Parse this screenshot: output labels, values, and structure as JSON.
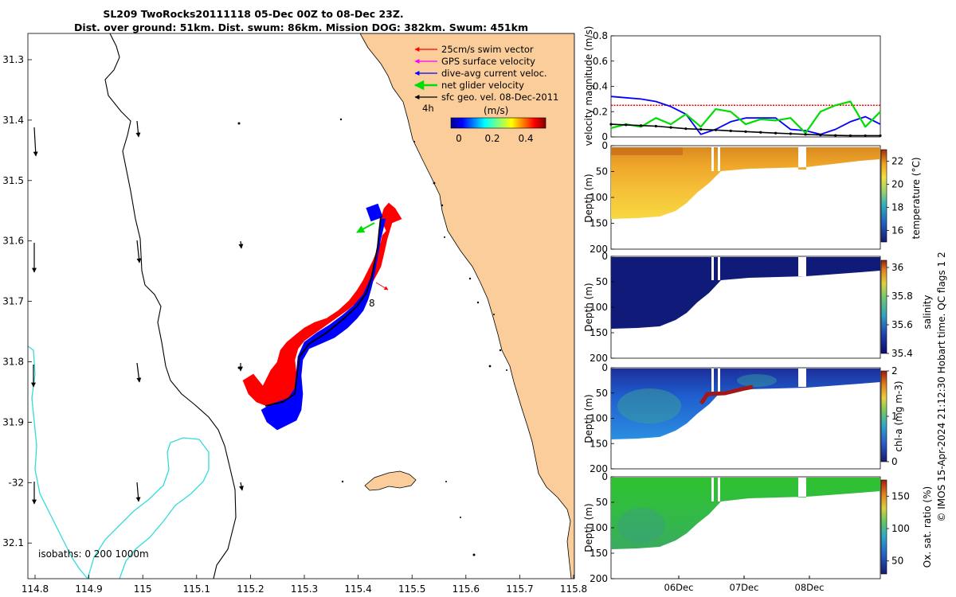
{
  "title": {
    "line1": "SL209 TwoRocks20111118 05-Dec 00Z to 08-Dec 23Z.",
    "line2": "Dist. over ground: 51km. Dist. swum: 86km. Mission DOG: 382km. Swum: 451km"
  },
  "colors": {
    "land": "#fbcd9b",
    "isobath_0": "#000000",
    "isobath_200": "#000000",
    "isobath_1000": "#33dcdc",
    "swim_vector": "#ff0000",
    "gps_surface": "#ff00ff",
    "dive_avg": "#0000ff",
    "net_glider": "#00dd00",
    "sfc_geo": "#000000"
  },
  "map": {
    "legend": [
      {
        "label": "25cm/s swim vector",
        "color": "#ff0000"
      },
      {
        "label": "GPS surface velocity",
        "color": "#ff00ff"
      },
      {
        "label": "dive-avg current veloc.",
        "color": "#0000ff"
      },
      {
        "label": "net glider velocity",
        "color": "#00dd00"
      },
      {
        "label": "sfc geo. vel. 08-Dec-2011",
        "color": "#000000"
      }
    ],
    "time_label": "4h",
    "colorbar_label": "(m/s)",
    "colorbar_ticks": [
      "0",
      "0.2",
      "0.4"
    ],
    "isobath_label": "isobaths: 0   200  1000m",
    "track_annotation": "8",
    "lon_ticks": [
      "114.8",
      "114.9",
      "115",
      "115.1",
      "115.2",
      "115.3",
      "115.4",
      "115.5",
      "115.6",
      "115.7",
      "115.8"
    ],
    "lat_ticks": [
      "31.3",
      "31.4",
      "31.5",
      "31.6",
      "31.7",
      "31.8",
      "31.9",
      "-32",
      "32.1"
    ]
  },
  "chart_data": [
    {
      "type": "line",
      "ylabel": "velocity magnitude (m/s)",
      "ylim": [
        0,
        0.8
      ],
      "yticks": [
        "0",
        "0.2",
        "0.4",
        "0.6",
        "0.8"
      ],
      "series": [
        {
          "color": "#ff0000",
          "values": [
            0.25,
            0.25,
            0.25,
            0.25,
            0.25,
            0.25,
            0.25,
            0.25,
            0.25,
            0.25
          ]
        },
        {
          "color": "#0000ff",
          "values": [
            0.32,
            0.31,
            0.3,
            0.28,
            0.24,
            0.18,
            0.02,
            0.06,
            0.12,
            0.15,
            0.15,
            0.15,
            0.06,
            0.05,
            0.02,
            0.06,
            0.12,
            0.16,
            0.1
          ]
        },
        {
          "color": "#00dd00",
          "values": [
            0.07,
            0.1,
            0.08,
            0.15,
            0.1,
            0.18,
            0.08,
            0.22,
            0.2,
            0.1,
            0.14,
            0.13,
            0.15,
            0.03,
            0.2,
            0.25,
            0.28,
            0.08,
            0.2
          ]
        },
        {
          "color": "#000000",
          "values": [
            0.1,
            0.095,
            0.09,
            0.085,
            0.075,
            0.065,
            0.06,
            0.055,
            0.048,
            0.042,
            0.036,
            0.03,
            0.025,
            0.02,
            0.015,
            0.012,
            0.01,
            0.01,
            0.01
          ]
        }
      ]
    },
    {
      "type": "heatmap",
      "ylabel": "Depth (m)",
      "colorbar_label": "temperature (°C)",
      "yticks": [
        "0",
        "50",
        "100",
        "150",
        "200"
      ],
      "colorbar_ticks": [
        "16",
        "18",
        "20",
        "22"
      ],
      "ylim": [
        200,
        0
      ],
      "clim": [
        15,
        23
      ]
    },
    {
      "type": "heatmap",
      "ylabel": "Depth (m)",
      "colorbar_label": "salinity",
      "yticks": [
        "0",
        "50",
        "100",
        "150",
        "200"
      ],
      "colorbar_ticks": [
        "35.4",
        "35.6",
        "35.8",
        "36"
      ],
      "ylim": [
        200,
        0
      ],
      "clim": [
        35.4,
        36.05
      ]
    },
    {
      "type": "heatmap",
      "ylabel": "Depth (m)",
      "colorbar_label": "chl-a (mg m-3)",
      "yticks": [
        "0",
        "50",
        "100",
        "150",
        "200"
      ],
      "colorbar_ticks": [
        "0",
        "1",
        "2"
      ],
      "ylim": [
        200,
        0
      ],
      "clim": [
        0,
        2
      ]
    },
    {
      "type": "heatmap",
      "ylabel": "Depth (m)",
      "colorbar_label": "Ox. sat. ratio (%)",
      "yticks": [
        "0",
        "50",
        "100",
        "150",
        "200"
      ],
      "colorbar_ticks": [
        "50",
        "100",
        "150"
      ],
      "ylim": [
        200,
        0
      ],
      "clim": [
        30,
        175
      ]
    }
  ],
  "time_axis": {
    "ticks": [
      "06Dec",
      "07Dec",
      "08Dec"
    ]
  },
  "footer": "© IMOS 15-Apr-2024 21:12:30 Hobart time. QC flags 1  2"
}
